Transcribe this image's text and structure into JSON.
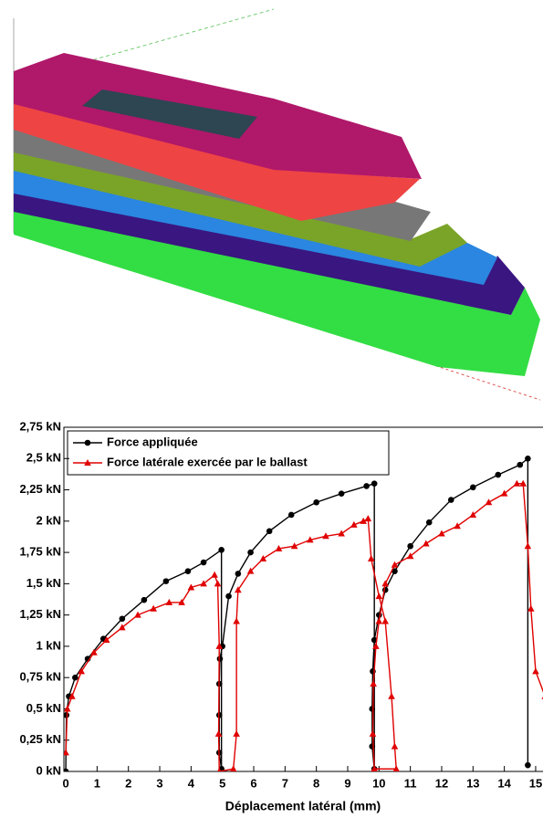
{
  "chart_data": {
    "type": "line",
    "xlabel": "Déplacement latéral (mm)",
    "xlim": [
      -0.06,
      15.38
    ],
    "xticks": [
      0,
      1,
      2,
      3,
      4,
      5,
      6,
      7,
      8,
      9,
      10,
      11,
      12,
      13,
      14,
      15
    ],
    "ylim": [
      0,
      2.75
    ],
    "yticks": [
      {
        "value": 0,
        "label": "0 kN"
      },
      {
        "value": 0.25,
        "label": "0,25 kN"
      },
      {
        "value": 0.5,
        "label": "0,5 kN"
      },
      {
        "value": 0.75,
        "label": "0,75 kN"
      },
      {
        "value": 1,
        "label": "1 kN"
      },
      {
        "value": 1.25,
        "label": "1,25 kN"
      },
      {
        "value": 1.5,
        "label": "1,5 kN"
      },
      {
        "value": 1.75,
        "label": "1,75 kN"
      },
      {
        "value": 2,
        "label": "2 kN"
      },
      {
        "value": 2.25,
        "label": "2,25 kN"
      },
      {
        "value": 2.5,
        "label": "2,5 kN"
      },
      {
        "value": 2.75,
        "label": "2,75 kN"
      }
    ],
    "legend": "upper left",
    "series": [
      {
        "name": "Force appliquée",
        "color": "#000000",
        "marker": "circle",
        "x": [
          0,
          0.02,
          0.1,
          0.3,
          0.7,
          1.2,
          1.8,
          2.5,
          3.2,
          3.9,
          4.4,
          4.97,
          4.97,
          4.9,
          4.9,
          4.9,
          4.92,
          5.0,
          5.2,
          5.5,
          5.9,
          6.5,
          7.2,
          8.0,
          8.8,
          9.6,
          9.85,
          9.85,
          9.78,
          9.78,
          9.8,
          9.85,
          10.0,
          10.2,
          10.5,
          11.0,
          11.6,
          12.3,
          13.0,
          13.8,
          14.5,
          14.75,
          14.75
        ],
        "values": [
          0,
          0.45,
          0.6,
          0.75,
          0.9,
          1.06,
          1.22,
          1.37,
          1.52,
          1.6,
          1.67,
          1.77,
          0.02,
          0.15,
          0.45,
          0.7,
          0.9,
          1.0,
          1.4,
          1.58,
          1.75,
          1.92,
          2.05,
          2.15,
          2.22,
          2.28,
          2.3,
          0.02,
          0.2,
          0.5,
          0.8,
          1.05,
          1.25,
          1.45,
          1.6,
          1.8,
          1.99,
          2.17,
          2.27,
          2.37,
          2.45,
          2.5,
          0.05
        ]
      },
      {
        "name": "Force latérale exercée par le ballast",
        "color": "#e00000",
        "marker": "triangle",
        "x": [
          0,
          0.05,
          0.2,
          0.5,
          0.9,
          1.3,
          1.8,
          2.3,
          2.8,
          3.3,
          3.7,
          4.0,
          4.4,
          4.75,
          4.85,
          4.9,
          4.88,
          4.9,
          5.35,
          5.45,
          5.45,
          5.5,
          5.9,
          6.3,
          6.8,
          7.3,
          7.8,
          8.3,
          8.8,
          9.2,
          9.5,
          9.65,
          9.75,
          10.0,
          10.2,
          10.4,
          10.5,
          10.55,
          9.85,
          9.8,
          9.82,
          9.9,
          10.0,
          10.2,
          10.5,
          11.0,
          11.5,
          12.0,
          12.5,
          13.0,
          13.5,
          14.0,
          14.4,
          14.6,
          14.75,
          14.85,
          15.0,
          15.3
        ],
        "values": [
          0.15,
          0.5,
          0.6,
          0.8,
          0.95,
          1.05,
          1.15,
          1.25,
          1.3,
          1.35,
          1.35,
          1.47,
          1.5,
          1.57,
          1.5,
          1.0,
          0.3,
          0.0,
          0.02,
          0.3,
          1.2,
          1.45,
          1.6,
          1.7,
          1.78,
          1.8,
          1.85,
          1.88,
          1.9,
          1.97,
          2.0,
          2.02,
          1.7,
          1.4,
          1.2,
          0.6,
          0.2,
          0.02,
          0.02,
          0.3,
          0.7,
          1.0,
          1.2,
          1.5,
          1.65,
          1.72,
          1.82,
          1.9,
          1.96,
          2.05,
          2.15,
          2.22,
          2.3,
          2.3,
          1.8,
          1.3,
          0.8,
          0.6
        ]
      }
    ]
  }
}
